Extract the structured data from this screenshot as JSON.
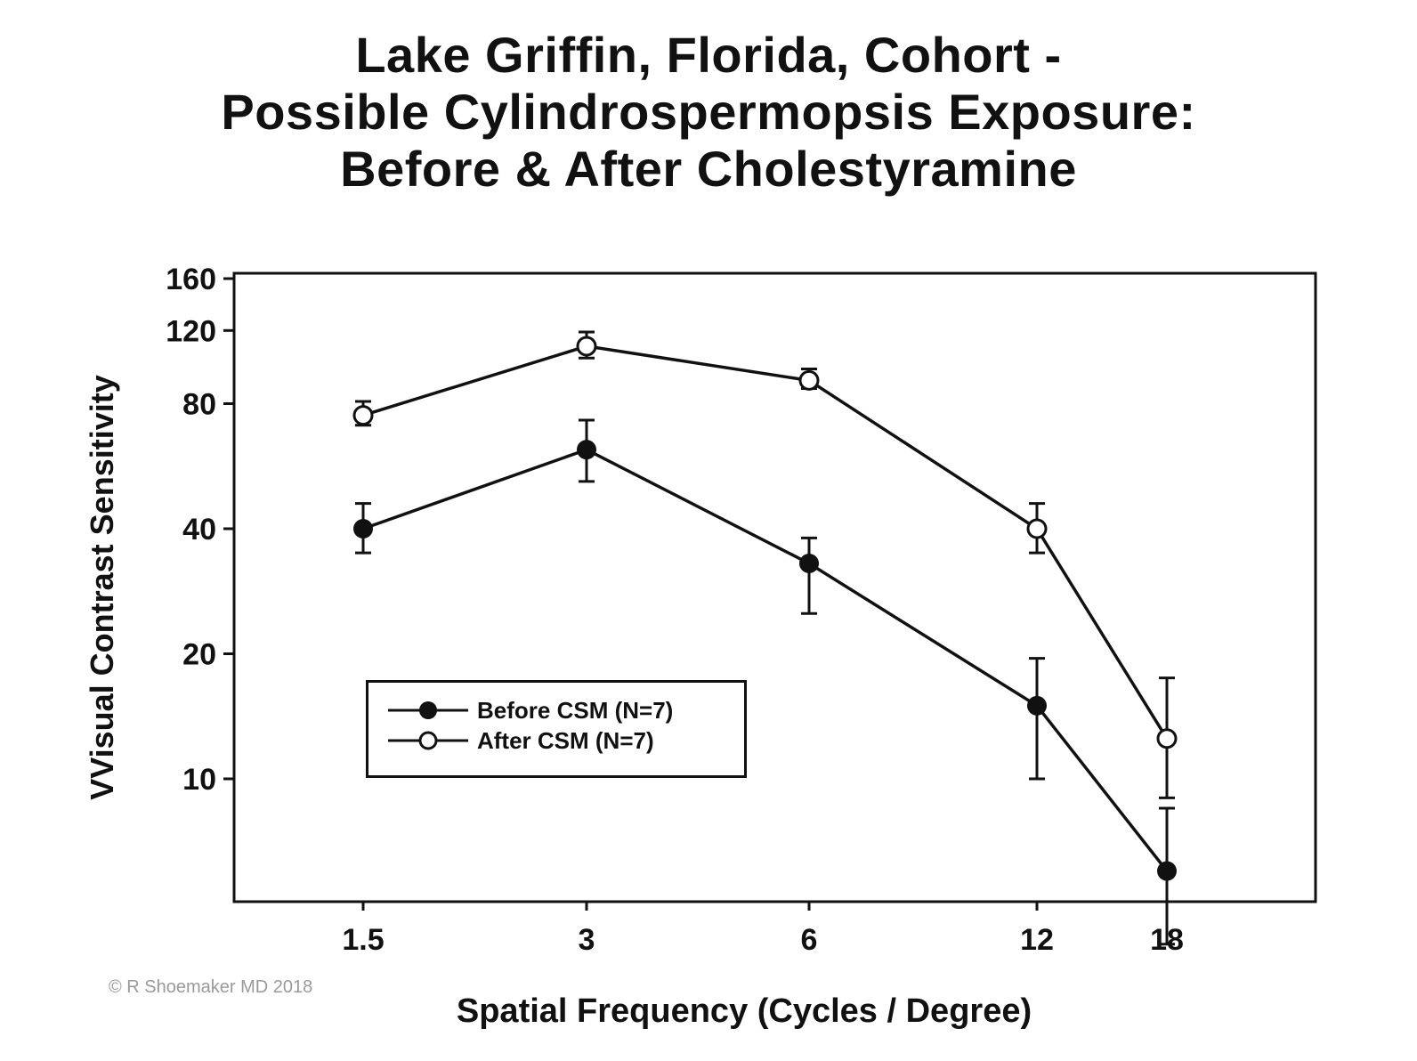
{
  "chart_data": {
    "type": "line",
    "title_lines": [
      "Lake Griffin, Florida, Cohort -",
      "Possible Cylindrospermopsis Exposure:",
      "Before & After Cholestyramine"
    ],
    "xlabel": "Spatial Frequency (Cycles / Degree)",
    "ylabel": "VVisual Contrast Sensitivity",
    "categories": [
      "1.5",
      "3",
      "6",
      "12",
      "18"
    ],
    "y_scale": "log",
    "yticks": [
      10,
      20,
      40,
      80,
      120,
      160
    ],
    "ylim": [
      5,
      160
    ],
    "legend_position": "lower-left",
    "grid": false,
    "series": [
      {
        "name": "Before CSM (N=7)",
        "marker": "filled-circle",
        "values": [
          40,
          62,
          33,
          15,
          6
        ],
        "error_low": [
          35,
          52,
          25,
          10,
          4
        ],
        "error_high": [
          46,
          73,
          38,
          19.5,
          8.5
        ]
      },
      {
        "name": "After CSM (N=7)",
        "marker": "open-circle",
        "values": [
          75,
          110,
          91,
          40,
          12.5
        ],
        "error_low": [
          71,
          103,
          87,
          35,
          9
        ],
        "error_high": [
          81,
          119,
          97,
          46,
          17.5
        ]
      }
    ]
  },
  "copyright": "© R Shoemaker MD 2018",
  "colors": {
    "ink": "#111111",
    "background": "#ffffff",
    "copyright": "#9a9a9a"
  }
}
